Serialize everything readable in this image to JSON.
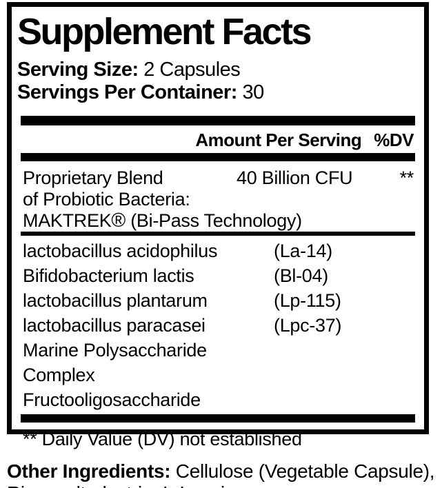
{
  "panel": {
    "title": "Supplement Facts",
    "serving_size": {
      "label": "Serving Size:",
      "value": "2 Capsules"
    },
    "servings_per_container": {
      "label": "Servings Per Container:",
      "value": "30"
    },
    "columns": {
      "amount": "Amount Per Serving",
      "dv": "%DV"
    },
    "proprietary": {
      "line1": "Proprietary Blend",
      "line2": "of Probiotic Bacteria:",
      "line3_brand": "MAKTREK",
      "line3_regmark": "®",
      "line3_suffix": "(Bi-Pass Technology)",
      "amount": "40 Billion CFU",
      "dv": "**"
    },
    "ingredients": [
      {
        "name": "lactobacillus acidophilus",
        "strain": "(La-14)"
      },
      {
        "name": "Bifidobacterium lactis",
        "strain": "(Bl-04)"
      },
      {
        "name": "lactobacillus plantarum",
        "strain": "(Lp-115)"
      },
      {
        "name": "lactobacillus paracasei",
        "strain": "(Lpc-37)"
      },
      {
        "name": "Marine Polysaccharide Complex",
        "strain": ""
      },
      {
        "name": "Fructooligosaccharide",
        "strain": ""
      }
    ],
    "footnote": "** Daily Value (DV) not established"
  },
  "other_ingredients": {
    "label": "Other Ingredients:",
    "value": " Cellulose (Vegetable Capsule), Rice maltodextrin, L-Leucine"
  },
  "colors": {
    "text": "#000000",
    "background": "#ffffff",
    "border": "#000000"
  }
}
